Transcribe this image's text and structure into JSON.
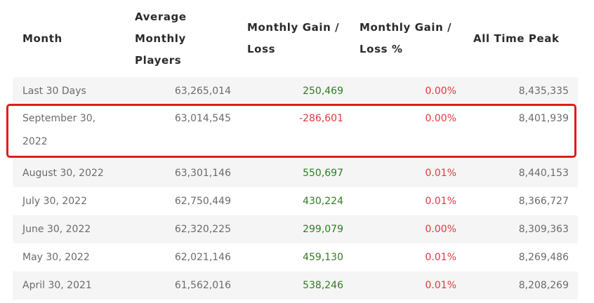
{
  "table": {
    "headers": {
      "month": "Month",
      "avg_line1": "Average",
      "avg_line2": "Monthly",
      "avg_line3": "Players",
      "gain_line1": "Monthly Gain /",
      "gain_line2": "Loss",
      "gainpct_line1": "Monthly Gain /",
      "gainpct_line2": "Loss %",
      "peak": "All Time Peak"
    },
    "rows": [
      {
        "month": "Last 30 Days",
        "avg": "63,265,014",
        "gain": "250,469",
        "pct": "0.00%",
        "peak": "8,435,335"
      },
      {
        "month_line1": "September 30,",
        "month_line2": "2022",
        "avg": "63,014,545",
        "gain": "-286,601",
        "pct": "0.00%",
        "peak": "8,401,939"
      },
      {
        "month": "August 30, 2022",
        "avg": "63,301,146",
        "gain": "550,697",
        "pct": "0.01%",
        "peak": "8,440,153"
      },
      {
        "month": "July 30, 2022",
        "avg": "62,750,449",
        "gain": "430,224",
        "pct": "0.01%",
        "peak": "8,366,727"
      },
      {
        "month": "June 30, 2022",
        "avg": "62,320,225",
        "gain": "299,079",
        "pct": "0.00%",
        "peak": "8,309,363"
      },
      {
        "month": "May 30, 2022",
        "avg": "62,021,146",
        "gain": "459,130",
        "pct": "0.01%",
        "peak": "8,269,486"
      },
      {
        "month": "April 30, 2021",
        "avg": "61,562,016",
        "gain": "538,246",
        "pct": "0.01%",
        "peak": "8,208,269"
      }
    ]
  },
  "colors": {
    "positive": "#2e7d1f",
    "negative": "#e0383b",
    "highlight_border": "#e21b1b",
    "row_shade": "#f5f5f5"
  }
}
